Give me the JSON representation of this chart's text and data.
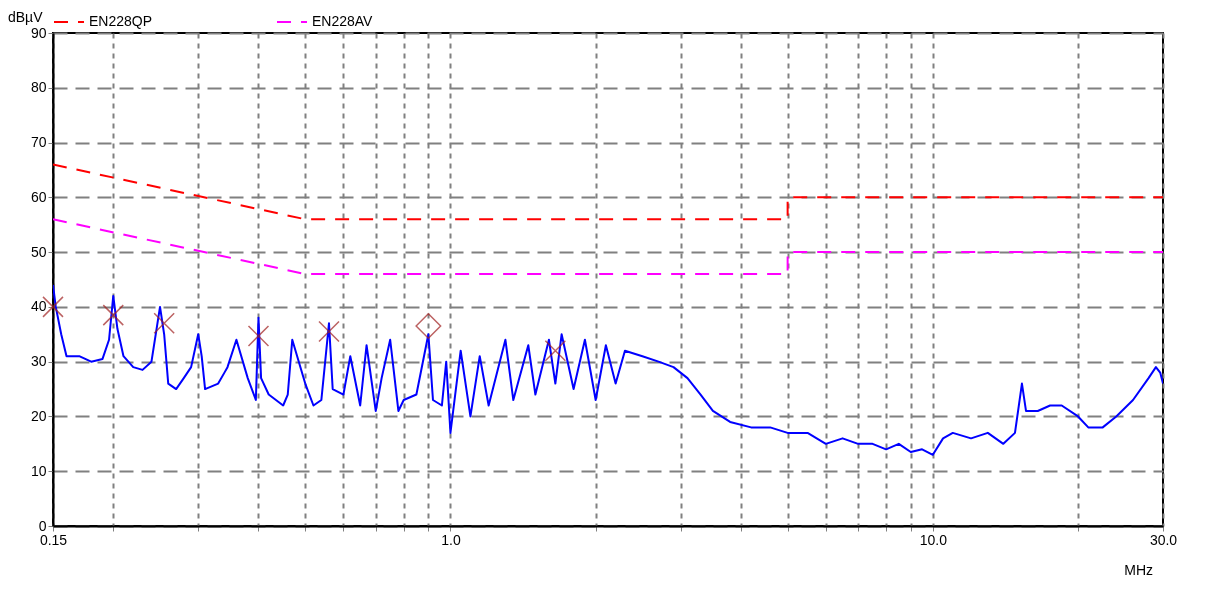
{
  "chart_data": {
    "type": "line",
    "xlabel": "MHz",
    "ylabel": "dBµV",
    "log": "x",
    "grid": true,
    "legend": "top",
    "xlim": [
      0.15,
      30
    ],
    "ylim": [
      0,
      90
    ],
    "xticks": [
      0.15,
      {
        "value": 0.2,
        "label": null
      },
      {
        "value": 0.3,
        "label": null
      },
      {
        "value": 0.4,
        "label": null
      },
      {
        "value": 0.5,
        "label": null
      },
      {
        "value": 0.6,
        "label": null
      },
      {
        "value": 0.7,
        "label": null
      },
      {
        "value": 0.8,
        "label": null
      },
      {
        "value": 0.9,
        "label": null
      },
      {
        "value": 1,
        "label": "1.0"
      },
      {
        "value": 2,
        "label": null
      },
      {
        "value": 3,
        "label": null
      },
      {
        "value": 4,
        "label": null
      },
      {
        "value": 5,
        "label": null
      },
      {
        "value": 6,
        "label": null
      },
      {
        "value": 7,
        "label": null
      },
      {
        "value": 8,
        "label": null
      },
      {
        "value": 9,
        "label": null
      },
      {
        "value": 10,
        "label": "10.0"
      },
      {
        "value": 20,
        "label": null
      },
      {
        "value": 30,
        "label": "30.0"
      }
    ],
    "yticks": [
      0,
      10,
      20,
      30,
      40,
      50,
      60,
      70,
      80,
      90
    ],
    "series": [
      {
        "name": "EN228QP",
        "color": "#ff0000",
        "line_style": "dashed",
        "x": [
          0.15,
          0.5,
          5,
          5,
          30
        ],
        "values": [
          66,
          56,
          56,
          60,
          60
        ]
      },
      {
        "name": "EN228AV",
        "color": "#ff00ff",
        "line_style": "dashed",
        "x": [
          0.15,
          0.5,
          5,
          5,
          30
        ],
        "values": [
          56,
          46,
          46,
          50,
          50
        ]
      },
      {
        "color": "#0000ff",
        "line_style": "solid",
        "x": [
          0.15,
          0.152,
          0.156,
          0.16,
          0.17,
          0.18,
          0.19,
          0.196,
          0.2,
          0.204,
          0.21,
          0.22,
          0.23,
          0.24,
          0.25,
          0.255,
          0.26,
          0.27,
          0.28,
          0.29,
          0.3,
          0.305,
          0.31,
          0.33,
          0.34,
          0.345,
          0.36,
          0.38,
          0.395,
          0.4,
          0.405,
          0.42,
          0.45,
          0.46,
          0.47,
          0.5,
          0.52,
          0.54,
          0.56,
          0.57,
          0.6,
          0.62,
          0.65,
          0.67,
          0.7,
          0.72,
          0.75,
          0.78,
          0.8,
          0.85,
          0.9,
          0.92,
          0.96,
          0.98,
          1.0,
          1.05,
          1.1,
          1.15,
          1.2,
          1.3,
          1.35,
          1.45,
          1.5,
          1.6,
          1.65,
          1.7,
          1.8,
          1.9,
          2.0,
          2.1,
          2.2,
          2.3,
          2.5,
          2.7,
          2.9,
          3.1,
          3.3,
          3.5,
          3.8,
          4.2,
          4.6,
          5.0,
          5.5,
          6.0,
          6.5,
          7.0,
          7.5,
          8.0,
          8.5,
          9.0,
          9.5,
          10.0,
          10.5,
          11.0,
          12.0,
          13.0,
          14.0,
          14.8,
          15.3,
          15.6,
          16.5,
          17.5,
          18.5,
          20.0,
          21.0,
          22.5,
          24.0,
          26.0,
          28.0,
          29.0,
          29.6,
          30.0
        ],
        "values": [
          44,
          40,
          35,
          31,
          31,
          30,
          30.5,
          34,
          42,
          36,
          31,
          29,
          28.5,
          30,
          40,
          35,
          26,
          25,
          27,
          29,
          35,
          31,
          25,
          26,
          28,
          29,
          34,
          27,
          23,
          38,
          27,
          24,
          22,
          24,
          34,
          26,
          22,
          23,
          37,
          25,
          24,
          31,
          22,
          33,
          21,
          27,
          34,
          21,
          23,
          24,
          35,
          23,
          22,
          30,
          17,
          32,
          20,
          31,
          22,
          34,
          23,
          33,
          24,
          34,
          26,
          35,
          25,
          34,
          23,
          33,
          26,
          32,
          31,
          30,
          29,
          27,
          24,
          21,
          19,
          18,
          18,
          17,
          17,
          15,
          16,
          15,
          15,
          14,
          15,
          13.5,
          14,
          13,
          16,
          17,
          16,
          17,
          15,
          17,
          26,
          21,
          21,
          22,
          22,
          20,
          18,
          18,
          20,
          23,
          27,
          29,
          28,
          26
        ]
      },
      {
        "type": "scatter",
        "marker": "cross",
        "color": "#a02020",
        "x": [
          0.15,
          0.2,
          0.255,
          0.4,
          0.56,
          1.65
        ],
        "values": [
          40,
          38.5,
          37,
          34.7,
          35.5,
          32
        ]
      },
      {
        "type": "scatter",
        "marker": "diamond",
        "color": "#a02020",
        "x": [
          0.9
        ],
        "values": [
          36.5
        ]
      }
    ]
  }
}
